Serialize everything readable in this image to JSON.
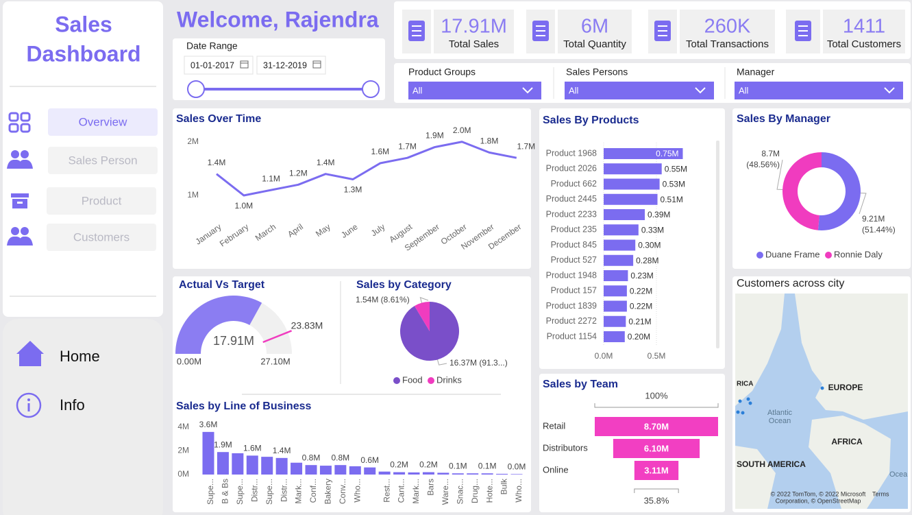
{
  "sidebar": {
    "title_lines": [
      "Sales",
      "Dashboard"
    ],
    "nav": [
      "Overview",
      "Sales Person",
      "Product",
      "Customers"
    ],
    "links": [
      "Home",
      "Info"
    ]
  },
  "header": {
    "welcome": "Welcome, Rajendra",
    "date_range_label": "Date Range",
    "start_date": "01-01-2017",
    "end_date": "31-12-2019"
  },
  "kpis": [
    {
      "value": "17.91M",
      "label": "Total Sales"
    },
    {
      "value": "6M",
      "label": "Total Quantity"
    },
    {
      "value": "260K",
      "label": "Total Transactions"
    },
    {
      "value": "1411",
      "label": "Total Customers"
    }
  ],
  "filters": [
    {
      "label": "Product Groups",
      "value": "All"
    },
    {
      "label": "Sales Persons",
      "value": "All"
    },
    {
      "label": "Manager",
      "value": "All"
    }
  ],
  "chart_data": [
    {
      "type": "line",
      "title": "Sales Over Time",
      "categories": [
        "January",
        "February",
        "March",
        "April",
        "May",
        "June",
        "July",
        "August",
        "September",
        "October",
        "November",
        "December"
      ],
      "values": [
        1.4,
        1.0,
        1.1,
        1.2,
        1.4,
        1.3,
        1.6,
        1.7,
        1.9,
        2.0,
        1.8,
        1.7
      ],
      "value_labels": [
        "1.4M",
        "1.0M",
        "1.1M",
        "1.2M",
        "1.4M",
        "1.3M",
        "1.6M",
        "1.7M",
        "1.9M",
        "2.0M",
        "1.8M",
        "1.7M"
      ],
      "color": "#7b6cf0",
      "ylim": [
        0.68,
        2.15
      ],
      "yticks": [
        {
          "value": 1,
          "label": "1M"
        },
        {
          "value": 2,
          "label": "2M"
        }
      ]
    },
    {
      "type": "gauge",
      "title": "Actual Vs Target",
      "value": 17.91,
      "value_label": "17.91M",
      "target": 23.83,
      "target_label": "23.83M",
      "min": 0,
      "min_label": "0.00M",
      "max": 27.1,
      "max_label": "27.10M",
      "color": "#8b7df2",
      "target_color": "#f03cbf"
    },
    {
      "type": "pie",
      "title": "Sales by Category",
      "categories": [
        "Food",
        "Drinks"
      ],
      "values": [
        16.37,
        1.54
      ],
      "value_labels": [
        "16.37M (91.3...)",
        "1.54M (8.61%)"
      ],
      "colors": [
        "#7a4fc9",
        "#f03cbf"
      ]
    },
    {
      "type": "bar",
      "title": "Sales by Line of Business",
      "categories": [
        "Supe...",
        "B & Bs",
        "Supe...",
        "Distr...",
        "Supe...",
        "Distr...",
        "Mark...",
        "Conf...",
        "Bakery",
        "Conv...",
        "Who...",
        null,
        "Rest...",
        "Cant...",
        "Mark...",
        "Bars",
        "Ware...",
        "Snac...",
        "Drug...",
        "Hote...",
        "Bulk",
        "Who..."
      ],
      "values": [
        3.6,
        1.9,
        1.8,
        1.6,
        1.5,
        1.4,
        1.0,
        0.8,
        0.75,
        0.8,
        0.7,
        0.6,
        0.25,
        0.2,
        0.18,
        0.2,
        0.15,
        0.1,
        0.1,
        0.1,
        0.06,
        0.04
      ],
      "value_labels": [
        "3.6M",
        "1.9M",
        null,
        "1.6M",
        null,
        "1.4M",
        null,
        "0.8M",
        null,
        "0.8M",
        null,
        "0.6M",
        null,
        "0.2M",
        null,
        "0.2M",
        null,
        "0.1M",
        null,
        "0.1M",
        null,
        "0.0M"
      ],
      "color": "#7b6cf0",
      "ylim": [
        0,
        4.2
      ],
      "yticks": [
        {
          "value": 0,
          "label": "0M"
        },
        {
          "value": 2,
          "label": "2M"
        },
        {
          "value": 4,
          "label": "4M"
        }
      ]
    },
    {
      "type": "bar",
      "orientation": "horizontal",
      "title": "Sales By Products",
      "categories": [
        "Product 1968",
        "Product 2026",
        "Product 662",
        "Product 2445",
        "Product 2233",
        "Product 235",
        "Product 845",
        "Product 527",
        "Product 1948",
        "Product 157",
        "Product 1839",
        "Product 2272",
        "Product 1154"
      ],
      "values": [
        0.75,
        0.55,
        0.53,
        0.51,
        0.39,
        0.33,
        0.3,
        0.28,
        0.23,
        0.22,
        0.22,
        0.21,
        0.2
      ],
      "value_labels": [
        "0.75M",
        "0.55M",
        "0.53M",
        "0.51M",
        "0.39M",
        "0.33M",
        "0.30M",
        "0.28M",
        "0.23M",
        "0.22M",
        "0.22M",
        "0.21M",
        "0.20M"
      ],
      "color": "#7b6cf0",
      "xlim": [
        0,
        1.0
      ],
      "xticks": [
        {
          "value": 0,
          "label": "0.0M"
        },
        {
          "value": 0.5,
          "label": "0.5M"
        }
      ],
      "grid": true
    },
    {
      "type": "donut",
      "title": "Sales By Manager",
      "categories": [
        "Duane Frame",
        "Ronnie Daly"
      ],
      "values": [
        9.21,
        8.7
      ],
      "value_labels": [
        [
          "9.21M",
          "(51.44%)"
        ],
        [
          "8.7M",
          "(48.56%)"
        ]
      ],
      "colors": [
        "#7b6cf0",
        "#f03cbf"
      ]
    },
    {
      "type": "funnel",
      "title": "Sales by Team",
      "categories": [
        "Retail",
        "Distributors",
        "Online"
      ],
      "values": [
        8.7,
        6.1,
        3.11
      ],
      "value_labels": [
        "8.70M",
        "6.10M",
        "3.11M"
      ],
      "top_label": "100%",
      "bottom_label": "35.8%",
      "color": "#f23fc2"
    }
  ],
  "map": {
    "title": "Customers across city",
    "labels": [
      "RICA",
      "EUROPE",
      "Atlantic",
      "Ocean",
      "AFRICA",
      "SOUTH AMERICA",
      "Ocea"
    ],
    "attribution": [
      "© 2022 TomTom, © 2022 Microsoft",
      "Corporation, © OpenStreetMap"
    ],
    "terms": "Terms"
  }
}
